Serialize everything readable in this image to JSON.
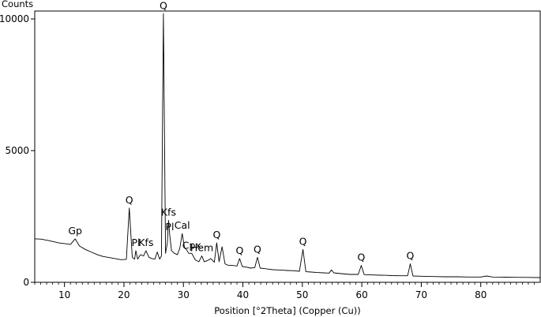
{
  "chart_data": {
    "type": "line",
    "title": "",
    "xlabel": "Position [°2Theta] (Copper (Cu))",
    "ylabel": "Counts",
    "xlim": [
      5,
      90
    ],
    "ylim": [
      0,
      10300
    ],
    "x_ticks": [
      10,
      20,
      30,
      40,
      50,
      60,
      70,
      80
    ],
    "y_ticks": [
      0,
      5000,
      10000
    ],
    "grid": false,
    "legend": "none",
    "line_color": "#000000",
    "series": [
      {
        "x": [
          5,
          6,
          7,
          8,
          9,
          10,
          11,
          11.8,
          12.5,
          13.5,
          14.5,
          15.5,
          16.5,
          17.5,
          18.5,
          19.5,
          20.4,
          20.9,
          21.4,
          21.8,
          22.0,
          22.3,
          22.8,
          23.3,
          23.7,
          24.2,
          24.7,
          25.2,
          25.6,
          26.0,
          26.3,
          26.64,
          27.0,
          27.3,
          27.5,
          27.7,
          28.0,
          28.5,
          29.0,
          29.4,
          29.8,
          30.2,
          30.5,
          30.9,
          31.4,
          32.0,
          32.6,
          33.1,
          33.5,
          34.0,
          34.6,
          35.2,
          35.6,
          36.0,
          36.5,
          37.0,
          37.5,
          38.2,
          39.0,
          39.45,
          39.9,
          40.5,
          41.3,
          42.0,
          42.45,
          42.9,
          43.6,
          44.3,
          45.0,
          45.8,
          46.5,
          47.5,
          48.5,
          49.5,
          50.1,
          50.6,
          51.5,
          52.5,
          53.5,
          54.5,
          54.9,
          55.3,
          56.5,
          58.0,
          59.4,
          59.9,
          60.4,
          61.5,
          63.0,
          64.0,
          65.0,
          66.5,
          67.7,
          68.15,
          68.6,
          70.0,
          72.0,
          74.0,
          76.0,
          78.0,
          80.0,
          81.0,
          82.0,
          84.0,
          86.0,
          88.0,
          90.0
        ],
        "values": [
          1650,
          1640,
          1600,
          1550,
          1500,
          1470,
          1440,
          1650,
          1380,
          1250,
          1150,
          1050,
          980,
          940,
          900,
          860,
          870,
          2820,
          950,
          880,
          1200,
          880,
          1050,
          1000,
          1200,
          950,
          900,
          880,
          1150,
          880,
          1000,
          10200,
          1100,
          1500,
          2350,
          1800,
          1200,
          1100,
          1050,
          1300,
          1850,
          1300,
          1250,
          1100,
          1100,
          850,
          780,
          1000,
          780,
          820,
          900,
          760,
          1500,
          780,
          1350,
          700,
          650,
          640,
          620,
          900,
          600,
          580,
          540,
          560,
          950,
          540,
          520,
          500,
          480,
          470,
          460,
          450,
          440,
          420,
          1250,
          400,
          390,
          370,
          360,
          350,
          470,
          360,
          330,
          300,
          300,
          640,
          290,
          280,
          270,
          265,
          255,
          250,
          250,
          700,
          240,
          230,
          220,
          210,
          210,
          200,
          200,
          240,
          200,
          195,
          190,
          185,
          180
        ]
      }
    ],
    "annotations": [
      {
        "text": "Q",
        "x": 26.64,
        "y": 10200
      },
      {
        "text": "Q",
        "x": 20.9,
        "y": 2820
      },
      {
        "text": "Gp",
        "x": 11.8,
        "y": 1650
      },
      {
        "text": "Pl",
        "x": 22.0,
        "y": 1200
      },
      {
        "text": "Kfs",
        "x": 23.7,
        "y": 1200
      },
      {
        "text": "Kfs",
        "x": 27.5,
        "y": 2350
      },
      {
        "text": "Pl",
        "x": 27.7,
        "y": 1800
      },
      {
        "text": "Cal",
        "x": 29.8,
        "y": 1850
      },
      {
        "text": "Cpx",
        "x": 31.4,
        "y": 1100
      },
      {
        "text": "Hem",
        "x": 33.1,
        "y": 1000
      },
      {
        "text": "Q",
        "x": 35.6,
        "y": 1500
      },
      {
        "text": "Q",
        "x": 39.45,
        "y": 900
      },
      {
        "text": "Q",
        "x": 42.45,
        "y": 950
      },
      {
        "text": "Q",
        "x": 50.1,
        "y": 1250
      },
      {
        "text": "Q",
        "x": 59.9,
        "y": 640
      },
      {
        "text": "Q",
        "x": 68.15,
        "y": 700
      }
    ]
  }
}
